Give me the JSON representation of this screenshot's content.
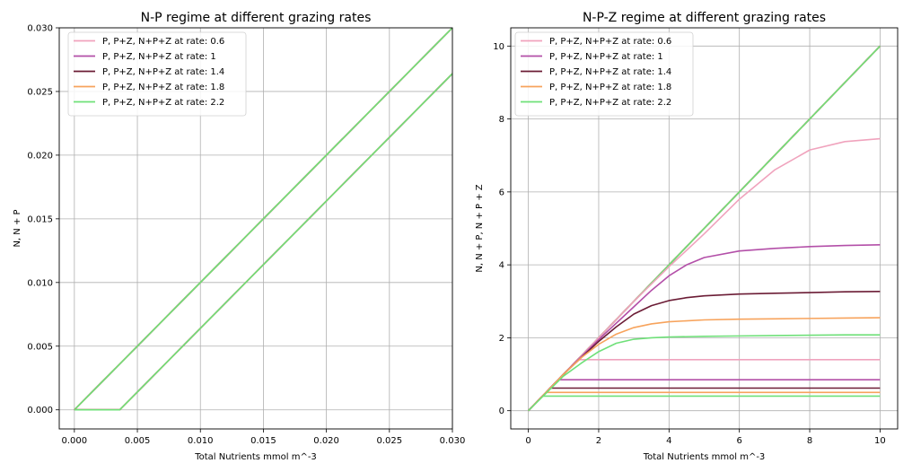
{
  "chart_data": [
    {
      "type": "line",
      "title": "N-P regime at different grazing rates",
      "xlabel": "Total Nutrients mmol m^-3",
      "ylabel": "N, N + P",
      "xlim": [
        -0.0012,
        0.03
      ],
      "ylim": [
        -0.0015,
        0.03
      ],
      "xticks": [
        0.0,
        0.005,
        0.01,
        0.015,
        0.02,
        0.025,
        0.03
      ],
      "xtick_labels": [
        "0.000",
        "0.005",
        "0.010",
        "0.015",
        "0.020",
        "0.025",
        "0.030"
      ],
      "yticks": [
        0.0,
        0.005,
        0.01,
        0.015,
        0.02,
        0.025,
        0.03
      ],
      "ytick_labels": [
        "0.000",
        "0.005",
        "0.010",
        "0.015",
        "0.020",
        "0.025",
        "0.030"
      ],
      "grid": true,
      "legend_position": "upper-left",
      "legend": [
        {
          "label": "P, P+Z, N+P+Z at rate: 0.6",
          "color": "#f0a3bd"
        },
        {
          "label": "P, P+Z, N+P+Z at rate: 1",
          "color": "#b34fa8"
        },
        {
          "label": "P, P+Z, N+P+Z at rate: 1.4",
          "color": "#6b1c35"
        },
        {
          "label": "P, P+Z, N+P+Z at rate: 1.8",
          "color": "#f7a35c"
        },
        {
          "label": "P, P+Z, N+P+Z at rate: 2.2",
          "color": "#6fe079"
        }
      ],
      "series": [
        {
          "color": "#f0a3bd",
          "x": [
            0,
            0.03
          ],
          "y": [
            0,
            0.03
          ]
        },
        {
          "color": "#b34fa8",
          "x": [
            0,
            0.03
          ],
          "y": [
            0,
            0.03
          ]
        },
        {
          "color": "#6b1c35",
          "x": [
            0,
            0.03
          ],
          "y": [
            0,
            0.03
          ]
        },
        {
          "color": "#f7a35c",
          "x": [
            0,
            0.03
          ],
          "y": [
            0,
            0.03
          ]
        },
        {
          "color": "#6fe079",
          "x": [
            0,
            0.03
          ],
          "y": [
            0,
            0.03
          ]
        },
        {
          "color": "#f0a3bd",
          "x": [
            0,
            0.0036,
            0.03
          ],
          "y": [
            0,
            0,
            0.0264
          ]
        },
        {
          "color": "#b34fa8",
          "x": [
            0,
            0.0036,
            0.03
          ],
          "y": [
            0,
            0,
            0.0264
          ]
        },
        {
          "color": "#6b1c35",
          "x": [
            0,
            0.0036,
            0.03
          ],
          "y": [
            0,
            0,
            0.0264
          ]
        },
        {
          "color": "#f7a35c",
          "x": [
            0,
            0.0036,
            0.03
          ],
          "y": [
            0,
            0,
            0.0264
          ]
        },
        {
          "color": "#6fe079",
          "x": [
            0,
            0.0036,
            0.03
          ],
          "y": [
            0,
            0,
            0.0264
          ]
        }
      ]
    },
    {
      "type": "line",
      "title": "N-P-Z regime at different grazing rates",
      "xlabel": "Total Nutrients mmol m^-3",
      "ylabel": "N, N + P, N + P + Z",
      "xlim": [
        -0.5,
        10.5
      ],
      "ylim": [
        -0.5,
        10.5
      ],
      "xticks": [
        0,
        2,
        4,
        6,
        8,
        10
      ],
      "xtick_labels": [
        "0",
        "2",
        "4",
        "6",
        "8",
        "10"
      ],
      "yticks": [
        0,
        2,
        4,
        6,
        8,
        10
      ],
      "ytick_labels": [
        "0",
        "2",
        "4",
        "6",
        "8",
        "10"
      ],
      "grid": true,
      "legend_position": "upper-left",
      "legend": [
        {
          "label": "P, P+Z, N+P+Z at rate: 0.6",
          "color": "#f0a3bd"
        },
        {
          "label": "P, P+Z, N+P+Z at rate: 1",
          "color": "#b34fa8"
        },
        {
          "label": "P, P+Z, N+P+Z at rate: 1.4",
          "color": "#6b1c35"
        },
        {
          "label": "P, P+Z, N+P+Z at rate: 1.8",
          "color": "#f7a35c"
        },
        {
          "label": "P, P+Z, N+P+Z at rate: 2.2",
          "color": "#6fe079"
        }
      ],
      "series": [
        {
          "color": "#f0a3bd",
          "x": [
            0,
            10
          ],
          "y": [
            0,
            10
          ]
        },
        {
          "color": "#b34fa8",
          "x": [
            0,
            10
          ],
          "y": [
            0,
            10
          ]
        },
        {
          "color": "#6b1c35",
          "x": [
            0,
            10
          ],
          "y": [
            0,
            10
          ]
        },
        {
          "color": "#f7a35c",
          "x": [
            0,
            10
          ],
          "y": [
            0,
            10
          ]
        },
        {
          "color": "#6fe079",
          "x": [
            0,
            10
          ],
          "y": [
            0,
            10
          ]
        },
        {
          "color": "#f0a3bd",
          "x": [
            0.45,
            1.4,
            10
          ],
          "y": [
            0.45,
            1.4,
            1.4
          ]
        },
        {
          "color": "#b34fa8",
          "x": [
            0.45,
            0.85,
            10
          ],
          "y": [
            0.45,
            0.85,
            0.85
          ]
        },
        {
          "color": "#6b1c35",
          "x": [
            0.45,
            0.62,
            10
          ],
          "y": [
            0.45,
            0.62,
            0.62
          ]
        },
        {
          "color": "#f7a35c",
          "x": [
            0.45,
            0.5,
            10
          ],
          "y": [
            0.45,
            0.5,
            0.5
          ]
        },
        {
          "color": "#6fe079",
          "x": [
            0.4,
            10
          ],
          "y": [
            0.4,
            0.4
          ]
        },
        {
          "color": "#f0a3bd",
          "x": [
            0,
            1,
            2,
            3,
            4,
            5,
            6,
            7,
            8,
            9,
            10
          ],
          "y": [
            0,
            1,
            2,
            3,
            3.95,
            4.85,
            5.8,
            6.6,
            7.15,
            7.38,
            7.46
          ]
        },
        {
          "color": "#b34fa8",
          "x": [
            0,
            1,
            2,
            3,
            3.5,
            4,
            4.5,
            5,
            6,
            7,
            8,
            9,
            10
          ],
          "y": [
            0,
            1,
            1.95,
            2.85,
            3.3,
            3.7,
            4.0,
            4.2,
            4.38,
            4.45,
            4.5,
            4.53,
            4.55
          ]
        },
        {
          "color": "#6b1c35",
          "x": [
            0,
            1,
            2,
            2.5,
            3,
            3.5,
            4,
            4.5,
            5,
            6,
            7,
            8,
            9,
            10
          ],
          "y": [
            0,
            1,
            1.9,
            2.3,
            2.65,
            2.88,
            3.02,
            3.1,
            3.15,
            3.2,
            3.22,
            3.24,
            3.26,
            3.27
          ]
        },
        {
          "color": "#f7a35c",
          "x": [
            0,
            1,
            1.5,
            2,
            2.5,
            3,
            3.5,
            4,
            5,
            6,
            7,
            8,
            9,
            10
          ],
          "y": [
            0,
            1,
            1.45,
            1.82,
            2.1,
            2.28,
            2.38,
            2.44,
            2.49,
            2.51,
            2.52,
            2.53,
            2.54,
            2.55
          ]
        },
        {
          "color": "#6fe079",
          "x": [
            0,
            1,
            1.5,
            2,
            2.5,
            3,
            3.5,
            4,
            5,
            6,
            7,
            8,
            9,
            10
          ],
          "y": [
            0,
            0.95,
            1.3,
            1.62,
            1.85,
            1.96,
            2.0,
            2.02,
            2.04,
            2.05,
            2.06,
            2.07,
            2.08,
            2.08
          ]
        }
      ]
    }
  ]
}
